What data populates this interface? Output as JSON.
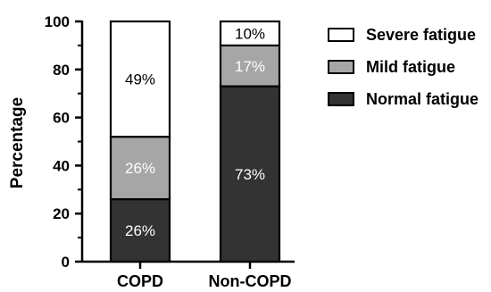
{
  "chart_data": {
    "type": "bar",
    "stacked": true,
    "categories": [
      "COPD",
      "Non-COPD"
    ],
    "series": [
      {
        "name": "Normal fatigue",
        "values": [
          26,
          73
        ],
        "labels": [
          "26%",
          "73%"
        ],
        "color": "#333333",
        "label_color": "#ffffff"
      },
      {
        "name": "Mild fatigue",
        "values": [
          26,
          17
        ],
        "labels": [
          "26%",
          "17%"
        ],
        "color": "#a6a6a6",
        "label_color": "#ffffff"
      },
      {
        "name": "Severe fatigue",
        "values": [
          49,
          10
        ],
        "labels": [
          "49%",
          "10%"
        ],
        "color": "#ffffff",
        "label_color": "#000000"
      }
    ],
    "legend_order": [
      "Severe fatigue",
      "Mild fatigue",
      "Normal fatigue"
    ],
    "ylabel": "Percentage",
    "xlabel": "",
    "ylim": [
      0,
      100
    ],
    "yticks": [
      0,
      20,
      40,
      60,
      80,
      100
    ],
    "grid": false,
    "legend_position": "right"
  }
}
